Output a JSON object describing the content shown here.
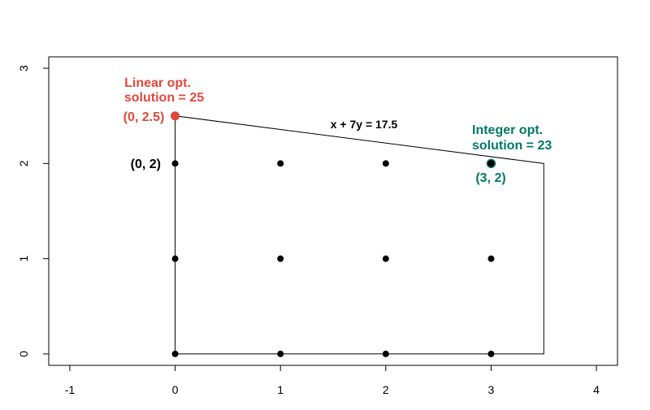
{
  "chart_data": {
    "type": "scatter",
    "title": "",
    "xlabel": "",
    "ylabel": "",
    "xlim": [
      -1.2,
      4.2
    ],
    "ylim": [
      -0.12,
      3.12
    ],
    "x_ticks": [
      "-1",
      "0",
      "1",
      "2",
      "3",
      "4"
    ],
    "y_ticks": [
      "0",
      "1",
      "2",
      "3"
    ],
    "grid": false,
    "feasible_region": [
      [
        0,
        0
      ],
      [
        0,
        2.5
      ],
      [
        3.5,
        2
      ],
      [
        3.5,
        0
      ]
    ],
    "lattice_points": [
      [
        0,
        0
      ],
      [
        1,
        0
      ],
      [
        2,
        0
      ],
      [
        3,
        0
      ],
      [
        0,
        1
      ],
      [
        1,
        1
      ],
      [
        2,
        1
      ],
      [
        3,
        1
      ],
      [
        0,
        2
      ],
      [
        1,
        2
      ],
      [
        2,
        2
      ],
      [
        3,
        2
      ]
    ],
    "linear_opt": {
      "point": [
        0,
        2.5
      ],
      "color": "#e0483b",
      "labels": [
        "Linear opt.",
        "solution = 25",
        "(0, 2.5)"
      ]
    },
    "integer_opt": {
      "point": [
        3,
        2
      ],
      "color": "#007a64",
      "labels": [
        "Integer opt.",
        "solution = 23",
        "(3, 2)"
      ]
    },
    "point_label": {
      "point": [
        0,
        2
      ],
      "text": "(0, 2)"
    },
    "constraint_label": "x + 7y = 17.5"
  }
}
